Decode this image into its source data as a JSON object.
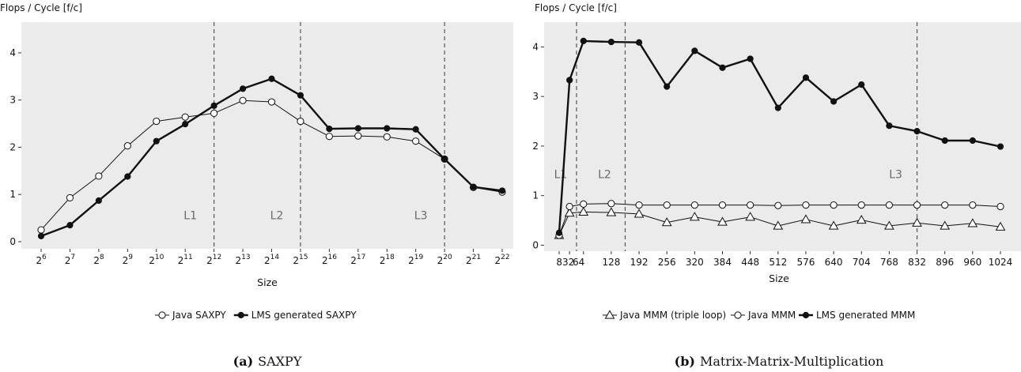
{
  "chart_data": [
    {
      "id": "saxpy",
      "type": "line",
      "caption_label": "(a)",
      "caption_title": "SAXPY",
      "ylabel": "Flops / Cycle [f/c]",
      "xlabel": "Size",
      "ylim": [
        -0.15,
        4.65
      ],
      "yticks": [
        0,
        1,
        2,
        3,
        4
      ],
      "grid": false,
      "legend_position": "bottom",
      "x_tick_labels": [
        {
          "base": "2",
          "exp": "6"
        },
        {
          "base": "2",
          "exp": "7"
        },
        {
          "base": "2",
          "exp": "8"
        },
        {
          "base": "2",
          "exp": "9"
        },
        {
          "base": "2",
          "exp": "10"
        },
        {
          "base": "2",
          "exp": "11"
        },
        {
          "base": "2",
          "exp": "12"
        },
        {
          "base": "2",
          "exp": "13"
        },
        {
          "base": "2",
          "exp": "14"
        },
        {
          "base": "2",
          "exp": "15"
        },
        {
          "base": "2",
          "exp": "16"
        },
        {
          "base": "2",
          "exp": "17"
        },
        {
          "base": "2",
          "exp": "18"
        },
        {
          "base": "2",
          "exp": "19"
        },
        {
          "base": "2",
          "exp": "20"
        },
        {
          "base": "2",
          "exp": "21"
        },
        {
          "base": "2",
          "exp": "22"
        }
      ],
      "vlines": [
        {
          "at": "2^12",
          "index": 6,
          "label": "L1"
        },
        {
          "at": "2^15",
          "index": 9,
          "label": "L2"
        },
        {
          "at": "2^20",
          "index": 14,
          "label": "L3"
        }
      ],
      "series": [
        {
          "name": "Java SAXPY",
          "marker": "open-circle",
          "line": "thin",
          "values": [
            0.25,
            0.93,
            1.39,
            2.03,
            2.55,
            2.64,
            2.72,
            2.99,
            2.96,
            2.55,
            2.23,
            2.24,
            2.22,
            2.13,
            1.75,
            1.15,
            1.05
          ]
        },
        {
          "name": "LMS generated SAXPY",
          "marker": "filled-circle",
          "line": "thick",
          "values": [
            0.12,
            0.35,
            0.87,
            1.38,
            2.13,
            2.49,
            2.88,
            3.24,
            3.45,
            3.1,
            2.39,
            2.4,
            2.4,
            2.38,
            1.75,
            1.16,
            1.08
          ]
        }
      ]
    },
    {
      "id": "mmm",
      "type": "line",
      "caption_label": "(b)",
      "caption_title": "Matrix-Matrix-Multiplication",
      "ylabel": "Flops / Cycle [f/c]",
      "xlabel": "Size",
      "ylim": [
        -0.12,
        4.5
      ],
      "yticks": [
        0,
        1,
        2,
        3,
        4
      ],
      "grid": false,
      "legend_position": "bottom",
      "x_tick_labels": [
        "8",
        "32",
        "64",
        "128",
        "192",
        "256",
        "320",
        "384",
        "448",
        "512",
        "576",
        "640",
        "704",
        "768",
        "832",
        "896",
        "960",
        "1024"
      ],
      "x_values": [
        8,
        32,
        64,
        128,
        192,
        256,
        320,
        384,
        448,
        512,
        576,
        640,
        704,
        768,
        832,
        896,
        960,
        1024
      ],
      "vlines": [
        {
          "at": 48,
          "label": "L1"
        },
        {
          "at": 160,
          "label": "L2"
        },
        {
          "at": 832,
          "label": "L3"
        }
      ],
      "series": [
        {
          "name": "Java MMM (triple loop)",
          "marker": "open-triangle",
          "line": "thin",
          "values": [
            0.2,
            0.65,
            0.67,
            0.66,
            0.63,
            0.46,
            0.57,
            0.47,
            0.57,
            0.39,
            0.52,
            0.39,
            0.51,
            0.39,
            0.45,
            0.39,
            0.44,
            0.37
          ]
        },
        {
          "name": "Java MMM",
          "marker": "open-circle",
          "line": "thin",
          "values": [
            0.2,
            0.78,
            0.83,
            0.84,
            0.81,
            0.81,
            0.81,
            0.81,
            0.81,
            0.8,
            0.81,
            0.81,
            0.81,
            0.81,
            0.81,
            0.81,
            0.81,
            0.78
          ]
        },
        {
          "name": "LMS generated MMM",
          "marker": "filled-circle",
          "line": "thick",
          "values": [
            0.25,
            3.33,
            4.12,
            4.1,
            4.09,
            3.2,
            3.92,
            3.58,
            3.76,
            2.77,
            3.38,
            2.9,
            3.24,
            2.41,
            2.3,
            2.11,
            2.11,
            1.99
          ]
        }
      ]
    }
  ]
}
